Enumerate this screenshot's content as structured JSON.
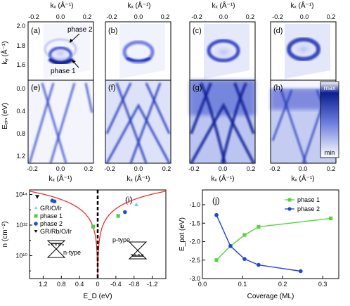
{
  "top_panels": {
    "kx_axis_label": "kₓ (Å⁻¹)",
    "kx_ticks": [
      "-0.2",
      "0.0",
      "0.2"
    ],
    "ky_axis_label": "kᵧ (Å⁻¹)",
    "ky_ticks": [
      "2.0",
      "1.8",
      "1.6"
    ],
    "panel_labels": [
      "(a)",
      "(b)",
      "(c)",
      "(d)"
    ],
    "annotation_phase2": "phase 2",
    "annotation_phase1": "phase 1"
  },
  "middle_panels": {
    "ebin_axis_label": "Eₑᵢₙ (eV)",
    "ebin_ticks": [
      "0.0",
      "0.4",
      "0.8",
      "1.2"
    ],
    "kx_axis_label": "kₓ (Å⁻¹)",
    "kx_ticks": [
      "-0.2",
      "0.0",
      "0.2"
    ],
    "panel_labels": [
      "(e)",
      "(f)",
      "(g)",
      "(h)"
    ],
    "colorbar_max": "max",
    "colorbar_min": "min",
    "colors": {
      "high": "#0b1f8f",
      "low": "#ffffff",
      "mid": "#6f7fe0"
    }
  },
  "chart_data": [
    {
      "type": "line",
      "panel": "(i)",
      "xlabel": "E_D (eV)",
      "ylabel": "n (cm⁻²)",
      "xticks": [
        "1.2",
        "0.8",
        "0.4",
        "0",
        "-0.4",
        "-0.8",
        "-1.2"
      ],
      "yticks": [
        "10¹⁴",
        "10¹²",
        "10¹⁰"
      ],
      "x_reversed": true,
      "xlim": [
        1.5,
        -1.5
      ],
      "y_log": true,
      "ylim_exp": [
        8.5,
        14.3
      ],
      "dirac_line_x": 0,
      "curve_color": "#e8302a",
      "legend": [
        {
          "label": "GR/O/Ir",
          "color": "#7ec8e8",
          "marker": "triangle-up"
        },
        {
          "label": "phase 1",
          "color": "#47d147",
          "marker": "square"
        },
        {
          "label": "phase 2",
          "color": "#1f4fd8",
          "marker": "circle"
        },
        {
          "label": "GR/Rb/O/Ir",
          "color": "#111111",
          "marker": "triangle-down"
        }
      ],
      "points": [
        {
          "series": "GR/Rb/O/Ir",
          "x": 1.33,
          "y_exp": 13.85
        },
        {
          "series": "phase 2",
          "x": 1.0,
          "y_exp": 13.6
        },
        {
          "series": "phase 2",
          "x": 0.95,
          "y_exp": 13.55
        },
        {
          "series": "phase 1",
          "x": 0.1,
          "y_exp": 11.9
        },
        {
          "series": "phase 1",
          "x": -0.45,
          "y_exp": 12.6
        },
        {
          "series": "phase 2",
          "x": -0.6,
          "y_exp": 12.85
        },
        {
          "series": "GR/O/Ir",
          "x": -0.85,
          "y_exp": 13.35
        }
      ],
      "n_type_label": "n-type",
      "p_type_label": "p-type"
    },
    {
      "type": "line",
      "panel": "(j)",
      "xlabel": "Coverage    (ML)",
      "ylabel": "E_pot (eV)",
      "xlim": [
        0.0,
        0.34
      ],
      "ylim": [
        -3.0,
        -0.6
      ],
      "xticks": [
        "0.0",
        "0.1",
        "0.2",
        "0.3"
      ],
      "yticks": [
        "-1.0",
        "-1.5",
        "-2.0",
        "-2.5",
        "-3.0"
      ],
      "series": [
        {
          "name": "phase 1",
          "color": "#55d43a",
          "marker": "square",
          "x": [
            0.035,
            0.07,
            0.105,
            0.14,
            0.32
          ],
          "y": [
            -2.5,
            -2.12,
            -1.82,
            -1.6,
            -1.37
          ]
        },
        {
          "name": "phase 2",
          "color": "#2142d6",
          "marker": "circle",
          "x": [
            0.035,
            0.07,
            0.105,
            0.14,
            0.245
          ],
          "y": [
            -1.28,
            -2.12,
            -2.47,
            -2.63,
            -2.8
          ]
        }
      ]
    }
  ]
}
